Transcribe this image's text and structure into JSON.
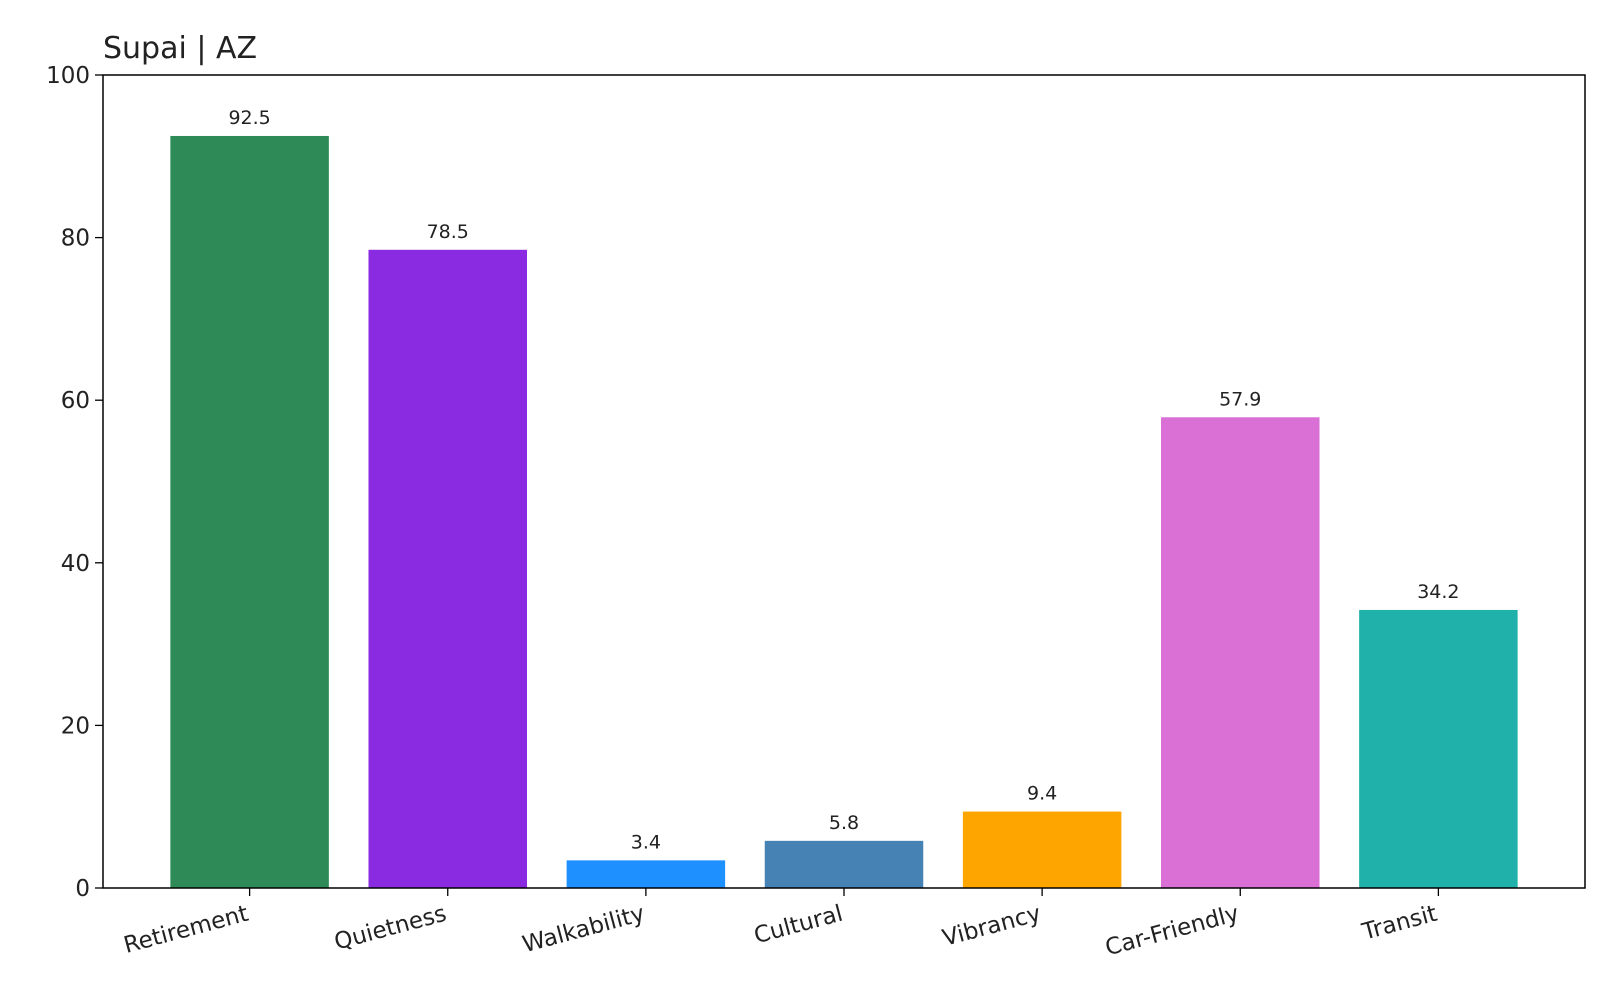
{
  "chart_data": {
    "type": "bar",
    "title": "Supai | AZ",
    "categories": [
      "Retirement",
      "Quietness",
      "Walkability",
      "Cultural",
      "Vibrancy",
      "Car-Friendly",
      "Transit"
    ],
    "values": [
      92.5,
      78.5,
      3.4,
      5.8,
      9.4,
      57.9,
      34.2
    ],
    "colors": [
      "#2e8b57",
      "#8a2be2",
      "#1e90ff",
      "#4682b4",
      "#ffa500",
      "#da70d6",
      "#20b2aa"
    ],
    "ylim": [
      0,
      100
    ],
    "yticks": [
      0,
      20,
      40,
      60,
      80,
      100
    ],
    "grid": false
  }
}
